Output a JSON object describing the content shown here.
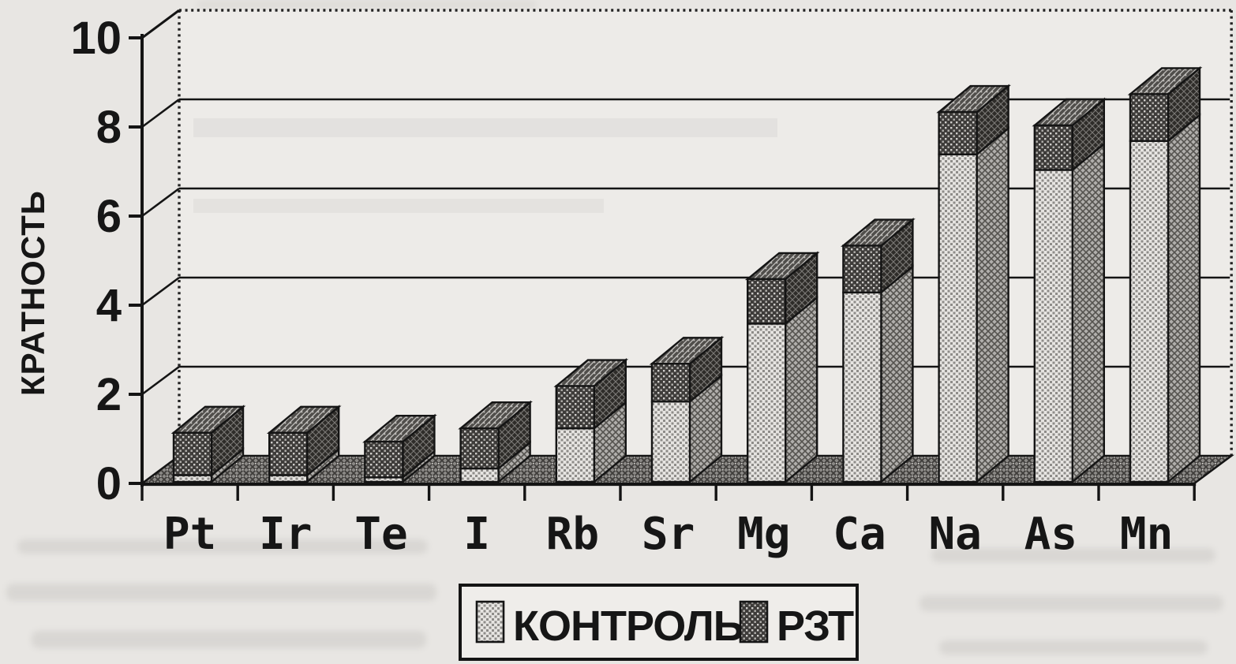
{
  "figure": {
    "kind": "scanned 3D stacked column chart",
    "axis_title": "КРАТНОСТЬ",
    "legend": {
      "items": [
        {
          "label": "КОНТРОЛЬ",
          "swatch": "light-dotted"
        },
        {
          "label": "РЗТ",
          "swatch": "dark-hatched"
        }
      ]
    },
    "colors": {
      "page_background": "#e8e6e3",
      "wall": "#edebe8",
      "bar_light": "#c9c7c4",
      "bar_dark": "#4a4846",
      "floor": "#76746f",
      "ink": "#111111"
    }
  },
  "chart_data": {
    "type": "bar",
    "subtype": "3d-stacked-column",
    "title": "",
    "xlabel": "",
    "ylabel": "КРАТНОСТЬ",
    "categories": [
      "Pt",
      "Ir",
      "Te",
      "I",
      "Rb",
      "Sr",
      "Mg",
      "Ca",
      "Na",
      "As",
      "Mn"
    ],
    "series": [
      {
        "name": "КОНТРОЛЬ",
        "role": "bottom-segment",
        "values": [
          0.15,
          0.15,
          0.1,
          0.3,
          1.2,
          1.8,
          3.55,
          4.25,
          7.35,
          7.0,
          7.65
        ]
      },
      {
        "name": "РЗТ",
        "role": "top-segment",
        "values": [
          0.95,
          0.95,
          0.8,
          0.9,
          0.95,
          0.85,
          1.0,
          1.05,
          0.95,
          1.0,
          1.05
        ]
      }
    ],
    "stacked": true,
    "stack_totals": [
      1.1,
      1.1,
      0.9,
      1.2,
      2.15,
      2.65,
      4.55,
      5.3,
      8.3,
      8.0,
      8.7
    ],
    "yticks": [
      0,
      2,
      4,
      6,
      8,
      10
    ],
    "ylim": [
      0,
      10
    ],
    "grid": "horizontal",
    "legend_position": "bottom"
  }
}
